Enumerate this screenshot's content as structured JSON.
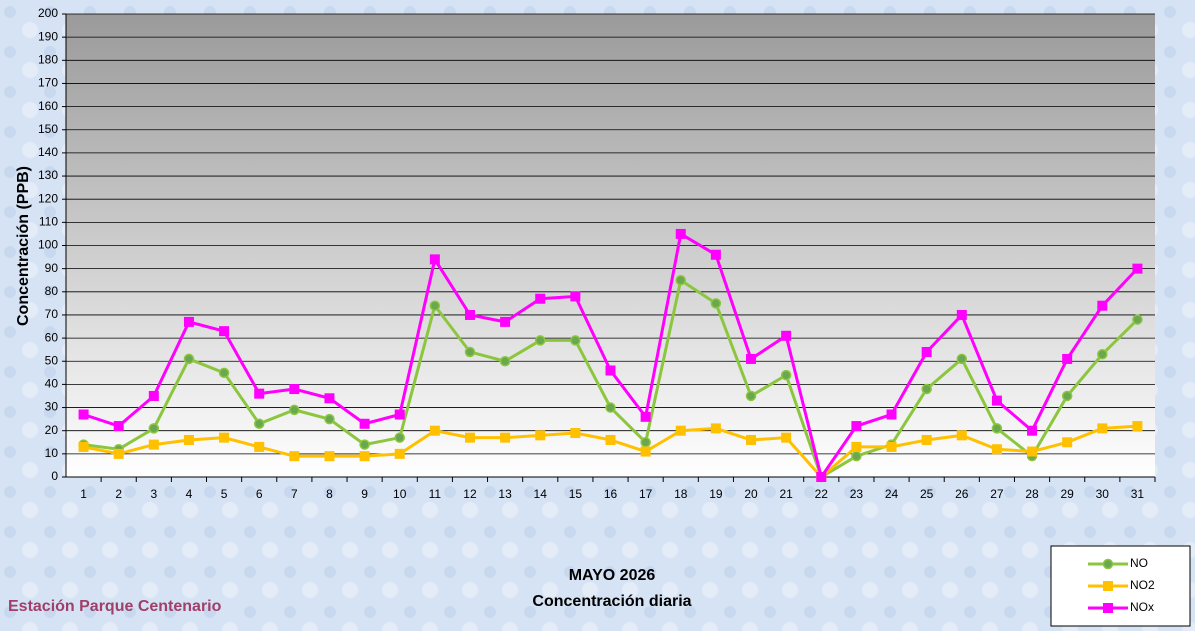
{
  "chart_data": {
    "type": "line",
    "title": "MAYO 2026",
    "subtitle": "Concentración diaria",
    "annotation": "Estación Parque Centenario",
    "y_label": "Concentración  (PPB)",
    "categories": [
      "1",
      "2",
      "3",
      "4",
      "5",
      "6",
      "7",
      "8",
      "9",
      "10",
      "11",
      "12",
      "13",
      "14",
      "15",
      "16",
      "17",
      "18",
      "19",
      "20",
      "21",
      "22",
      "23",
      "24",
      "25",
      "26",
      "27",
      "28",
      "29",
      "30",
      "31"
    ],
    "series": [
      {
        "name": "NO",
        "color": "#8cc63f",
        "marker": "circle",
        "values": [
          14,
          12,
          21,
          51,
          45,
          23,
          29,
          25,
          14,
          17,
          74,
          54,
          50,
          59,
          59,
          30,
          15,
          85,
          75,
          35,
          44,
          0,
          9,
          14,
          38,
          51,
          21,
          9,
          35,
          53,
          68
        ]
      },
      {
        "name": "NO2",
        "color": "#ffc000",
        "marker": "square",
        "values": [
          13,
          10,
          14,
          16,
          17,
          13,
          9,
          9,
          9,
          10,
          20,
          17,
          17,
          18,
          19,
          16,
          11,
          20,
          21,
          16,
          17,
          0,
          13,
          13,
          16,
          18,
          12,
          11,
          15,
          21,
          22
        ]
      },
      {
        "name": "NOx",
        "color": "#ff00ff",
        "marker": "square",
        "values": [
          27,
          22,
          35,
          67,
          63,
          36,
          38,
          34,
          23,
          27,
          94,
          70,
          67,
          77,
          78,
          46,
          26,
          105,
          96,
          51,
          61,
          0,
          22,
          27,
          54,
          70,
          33,
          20,
          51,
          74,
          90
        ]
      }
    ],
    "ylim": [
      0,
      200
    ],
    "yticks": [
      0,
      10,
      20,
      30,
      40,
      50,
      60,
      70,
      80,
      90,
      100,
      110,
      120,
      130,
      140,
      150,
      160,
      170,
      180,
      190,
      200
    ],
    "grid": true
  }
}
